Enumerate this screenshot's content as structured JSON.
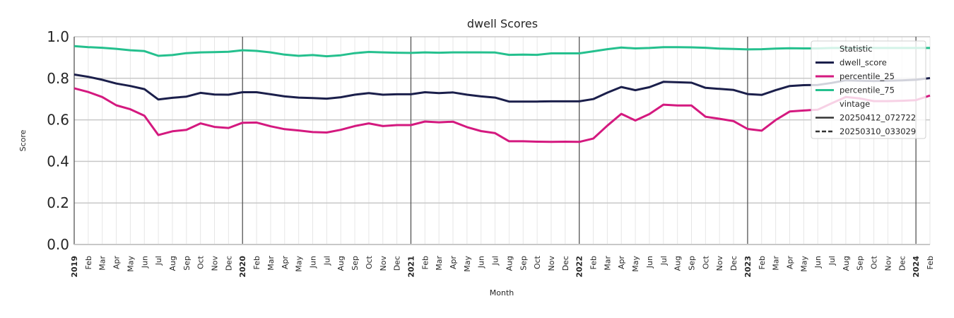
{
  "chart_data": {
    "type": "line",
    "title": "dwell Scores",
    "xlabel": "Month",
    "ylabel": "Score",
    "ylim": [
      0,
      1
    ],
    "yticks": [
      "0.0",
      "0.2",
      "0.4",
      "0.6",
      "0.8",
      "1.0"
    ],
    "grid": true,
    "legend_position": "top-right",
    "x": [
      "2019-01",
      "2019-02",
      "2019-03",
      "2019-04",
      "2019-05",
      "2019-06",
      "2019-07",
      "2019-08",
      "2019-09",
      "2019-10",
      "2019-11",
      "2019-12",
      "2020-01",
      "2020-02",
      "2020-03",
      "2020-04",
      "2020-05",
      "2020-06",
      "2020-07",
      "2020-08",
      "2020-09",
      "2020-10",
      "2020-11",
      "2020-12",
      "2021-01",
      "2021-02",
      "2021-03",
      "2021-04",
      "2021-05",
      "2021-06",
      "2021-07",
      "2021-08",
      "2021-09",
      "2021-10",
      "2021-11",
      "2021-12",
      "2022-01",
      "2022-02",
      "2022-03",
      "2022-04",
      "2022-05",
      "2022-06",
      "2022-07",
      "2022-08",
      "2022-09",
      "2022-10",
      "2022-11",
      "2022-12",
      "2023-01",
      "2023-02",
      "2023-03",
      "2023-04",
      "2023-05",
      "2023-06",
      "2023-07",
      "2023-08",
      "2023-09",
      "2023-10",
      "2023-11",
      "2023-12",
      "2024-01",
      "2024-02"
    ],
    "x_tick_labels": [
      "2019",
      "Feb",
      "Mar",
      "Apr",
      "May",
      "Jun",
      "Jul",
      "Aug",
      "Sep",
      "Oct",
      "Nov",
      "Dec",
      "2020",
      "Feb",
      "Mar",
      "Apr",
      "May",
      "Jun",
      "Jul",
      "Aug",
      "Sep",
      "Oct",
      "Nov",
      "Dec",
      "2021",
      "Feb",
      "Mar",
      "Apr",
      "May",
      "Jun",
      "Jul",
      "Aug",
      "Sep",
      "Oct",
      "Nov",
      "Dec",
      "2022",
      "Feb",
      "Mar",
      "Apr",
      "May",
      "Jun",
      "Jul",
      "Aug",
      "Sep",
      "Oct",
      "Nov",
      "Dec",
      "2023",
      "Feb",
      "Mar",
      "Apr",
      "May",
      "Jun",
      "Jul",
      "Aug",
      "Sep",
      "Oct",
      "Nov",
      "Dec",
      "2024",
      "Feb"
    ],
    "series": [
      {
        "name": "dwell_score",
        "color": "#1b1f4b",
        "values": [
          0.818,
          0.807,
          0.793,
          0.775,
          0.763,
          0.748,
          0.698,
          0.706,
          0.712,
          0.73,
          0.722,
          0.721,
          0.733,
          0.733,
          0.723,
          0.713,
          0.707,
          0.705,
          0.702,
          0.709,
          0.721,
          0.729,
          0.721,
          0.723,
          0.723,
          0.733,
          0.729,
          0.732,
          0.721,
          0.713,
          0.707,
          0.688,
          0.688,
          0.688,
          0.689,
          0.689,
          0.689,
          0.7,
          0.731,
          0.758,
          0.743,
          0.757,
          0.783,
          0.781,
          0.779,
          0.754,
          0.749,
          0.744,
          0.724,
          0.72,
          0.743,
          0.763,
          0.767,
          0.768,
          0.778,
          0.79,
          0.788,
          0.787,
          0.788,
          0.79,
          0.793,
          0.801
        ]
      },
      {
        "name": "percentile_25",
        "color": "#d4197f",
        "values": [
          0.752,
          0.734,
          0.71,
          0.67,
          0.651,
          0.62,
          0.527,
          0.545,
          0.552,
          0.583,
          0.566,
          0.561,
          0.586,
          0.587,
          0.569,
          0.555,
          0.549,
          0.541,
          0.539,
          0.552,
          0.57,
          0.583,
          0.57,
          0.575,
          0.575,
          0.592,
          0.588,
          0.591,
          0.565,
          0.546,
          0.536,
          0.497,
          0.497,
          0.495,
          0.494,
          0.495,
          0.494,
          0.51,
          0.572,
          0.629,
          0.597,
          0.628,
          0.673,
          0.669,
          0.669,
          0.615,
          0.605,
          0.594,
          0.556,
          0.548,
          0.599,
          0.64,
          0.645,
          0.649,
          0.68,
          0.71,
          0.703,
          0.69,
          0.69,
          0.692,
          0.695,
          0.717
        ]
      },
      {
        "name": "percentile_75",
        "color": "#25c08e",
        "values": [
          0.955,
          0.95,
          0.947,
          0.942,
          0.935,
          0.931,
          0.908,
          0.912,
          0.921,
          0.925,
          0.926,
          0.928,
          0.935,
          0.932,
          0.925,
          0.914,
          0.908,
          0.912,
          0.906,
          0.911,
          0.921,
          0.927,
          0.925,
          0.923,
          0.922,
          0.925,
          0.923,
          0.925,
          0.925,
          0.925,
          0.924,
          0.913,
          0.914,
          0.913,
          0.92,
          0.92,
          0.92,
          0.93,
          0.94,
          0.948,
          0.944,
          0.946,
          0.95,
          0.95,
          0.949,
          0.947,
          0.943,
          0.941,
          0.939,
          0.94,
          0.943,
          0.945,
          0.944,
          0.944,
          0.946,
          0.946,
          0.946,
          0.946,
          0.946,
          0.946,
          0.946,
          0.946
        ]
      }
    ],
    "legend": {
      "title": "Statistic",
      "statistic_entries": [
        {
          "label": "dwell_score",
          "color": "#1b1f4b"
        },
        {
          "label": "percentile_25",
          "color": "#d4197f"
        },
        {
          "label": "percentile_75",
          "color": "#25c08e"
        }
      ],
      "vintage_title": "vintage",
      "vintage_entries": [
        {
          "label": "20250412_072722",
          "style": "solid"
        },
        {
          "label": "20250310_033029",
          "style": "dashed"
        }
      ]
    }
  }
}
